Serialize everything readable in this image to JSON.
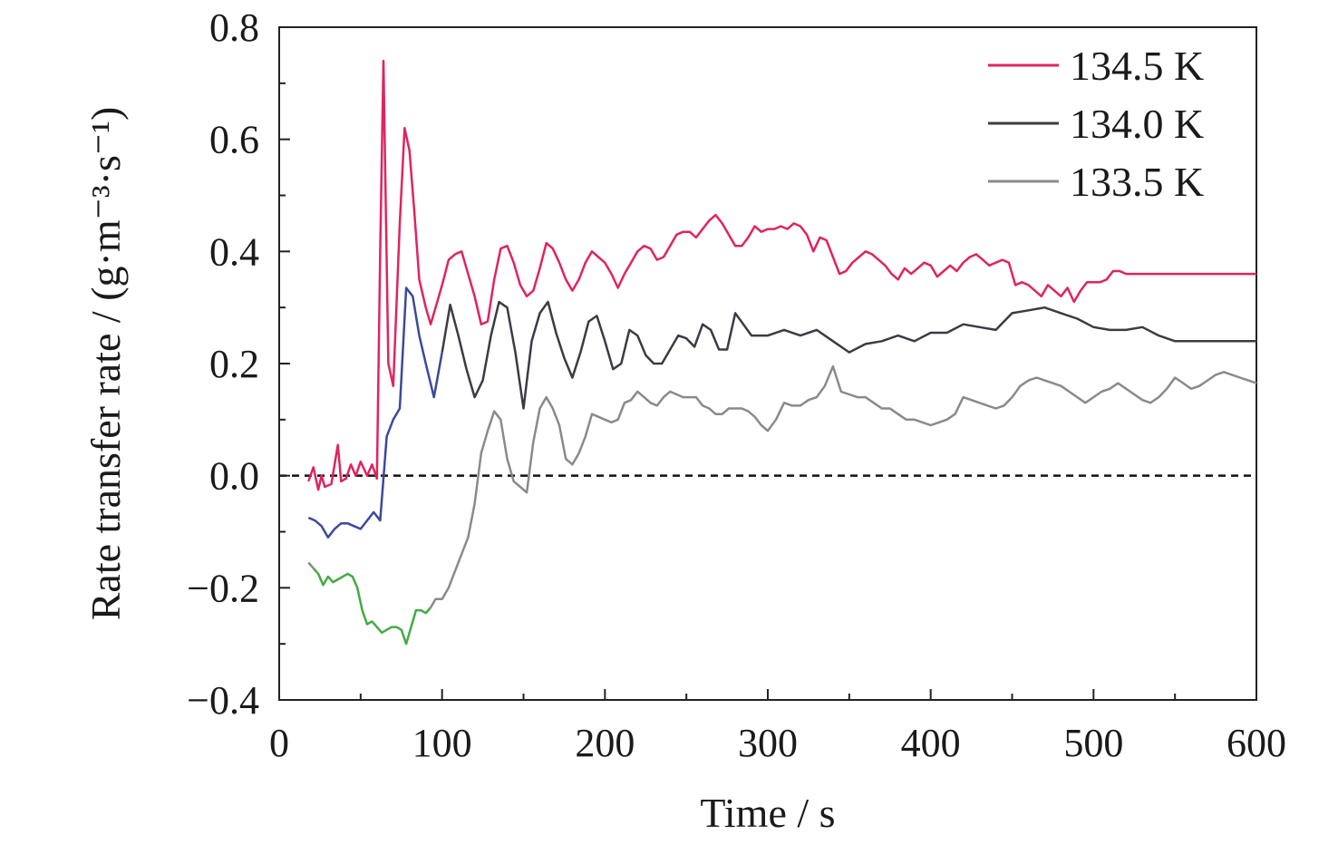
{
  "chart_data": {
    "type": "line",
    "title": "",
    "xlabel": "Time / s",
    "ylabel": "Rate transfer rate / (g·m⁻³·s⁻¹)",
    "xlim": [
      0,
      600
    ],
    "ylim": [
      -0.4,
      0.8
    ],
    "xticks": [
      0,
      100,
      200,
      300,
      400,
      500,
      600
    ],
    "xtick_labels": [
      "0",
      "100",
      "200",
      "300",
      "400",
      "500",
      "600"
    ],
    "yticks": [
      -0.4,
      -0.2,
      0.0,
      0.2,
      0.4,
      0.6,
      0.8
    ],
    "ytick_labels": [
      "−0.4",
      "−0.2",
      "0.0",
      "0.2",
      "0.4",
      "0.6",
      "0.8"
    ],
    "reference_line": {
      "y": 0.0,
      "style": "dashed"
    },
    "grid": false,
    "legend_position": "top-right",
    "series": [
      {
        "name": "134.5 K",
        "color": "#e0245e",
        "x": [
          18,
          21,
          24,
          26,
          28,
          32,
          36,
          38,
          41,
          44,
          47,
          50,
          54,
          57,
          60,
          62,
          64,
          67,
          70,
          74,
          77,
          80,
          83,
          86,
          90,
          93,
          96,
          100,
          104,
          108,
          112,
          116,
          120,
          124,
          128,
          132,
          136,
          140,
          144,
          148,
          152,
          156,
          160,
          164,
          168,
          172,
          176,
          180,
          184,
          188,
          192,
          196,
          200,
          204,
          208,
          212,
          216,
          220,
          224,
          228,
          232,
          236,
          240,
          244,
          248,
          252,
          256,
          260,
          264,
          268,
          272,
          276,
          280,
          284,
          288,
          292,
          296,
          300,
          304,
          308,
          312,
          316,
          320,
          324,
          328,
          332,
          336,
          340,
          344,
          348,
          352,
          356,
          360,
          364,
          368,
          372,
          376,
          380,
          384,
          388,
          392,
          396,
          400,
          404,
          408,
          412,
          416,
          420,
          424,
          428,
          432,
          436,
          440,
          444,
          448,
          452,
          456,
          460,
          464,
          468,
          472,
          476,
          480,
          484,
          488,
          492,
          496,
          500,
          504,
          508,
          512,
          516,
          520,
          524,
          528,
          532,
          536,
          540,
          544,
          548,
          552,
          556,
          560,
          564,
          568,
          572,
          576,
          580,
          584,
          588,
          592,
          596,
          600
        ],
        "y": [
          -0.01,
          0.015,
          -0.025,
          0.0,
          -0.02,
          -0.015,
          0.055,
          -0.01,
          -0.005,
          0.02,
          0.0,
          0.025,
          0.0,
          0.02,
          -0.005,
          0.4,
          0.74,
          0.2,
          0.16,
          0.45,
          0.62,
          0.58,
          0.47,
          0.35,
          0.3,
          0.27,
          0.3,
          0.34,
          0.385,
          0.395,
          0.4,
          0.36,
          0.32,
          0.27,
          0.275,
          0.35,
          0.405,
          0.41,
          0.38,
          0.34,
          0.32,
          0.33,
          0.37,
          0.415,
          0.405,
          0.38,
          0.35,
          0.33,
          0.35,
          0.38,
          0.4,
          0.39,
          0.38,
          0.36,
          0.335,
          0.36,
          0.38,
          0.4,
          0.41,
          0.405,
          0.385,
          0.39,
          0.41,
          0.43,
          0.435,
          0.435,
          0.425,
          0.44,
          0.455,
          0.465,
          0.45,
          0.43,
          0.41,
          0.41,
          0.425,
          0.445,
          0.435,
          0.44,
          0.44,
          0.445,
          0.44,
          0.45,
          0.445,
          0.43,
          0.4,
          0.425,
          0.42,
          0.39,
          0.36,
          0.365,
          0.38,
          0.39,
          0.4,
          0.395,
          0.385,
          0.375,
          0.36,
          0.35,
          0.37,
          0.36,
          0.37,
          0.38,
          0.375,
          0.355,
          0.365,
          0.375,
          0.365,
          0.38,
          0.39,
          0.395,
          0.385,
          0.375,
          0.38,
          0.385,
          0.38,
          0.34,
          0.345,
          0.34,
          0.33,
          0.32,
          0.34,
          0.33,
          0.32,
          0.335,
          0.31,
          0.33,
          0.345,
          0.345,
          0.345,
          0.35,
          0.365,
          0.365,
          0.36,
          0.36,
          0.36,
          0.36,
          0.36,
          0.36,
          0.36,
          0.36,
          0.36,
          0.36,
          0.36,
          0.36,
          0.36,
          0.36,
          0.36,
          0.36,
          0.36,
          0.36,
          0.36,
          0.36,
          0.36
        ]
      },
      {
        "name": "134.0 K",
        "color": "#3b3b45",
        "segment_colors": [
          {
            "x_range": [
              18,
              95
            ],
            "color": "#3b4a9a"
          }
        ],
        "x": [
          18,
          22,
          26,
          30,
          34,
          38,
          42,
          46,
          50,
          54,
          58,
          62,
          66,
          70,
          74,
          78,
          82,
          86,
          90,
          95,
          100,
          105,
          110,
          115,
          120,
          125,
          130,
          135,
          140,
          145,
          150,
          155,
          160,
          165,
          170,
          175,
          180,
          185,
          190,
          195,
          200,
          205,
          210,
          215,
          220,
          225,
          230,
          235,
          240,
          245,
          250,
          255,
          260,
          265,
          270,
          275,
          280,
          285,
          290,
          295,
          300,
          310,
          320,
          330,
          340,
          350,
          360,
          370,
          380,
          390,
          400,
          410,
          420,
          430,
          440,
          450,
          460,
          470,
          480,
          490,
          500,
          510,
          520,
          530,
          540,
          550,
          560,
          570,
          580,
          590,
          600
        ],
        "y": [
          -0.075,
          -0.08,
          -0.09,
          -0.11,
          -0.095,
          -0.085,
          -0.085,
          -0.09,
          -0.095,
          -0.08,
          -0.065,
          -0.08,
          0.07,
          0.1,
          0.12,
          0.335,
          0.32,
          0.25,
          0.2,
          0.14,
          0.22,
          0.305,
          0.25,
          0.19,
          0.14,
          0.17,
          0.25,
          0.31,
          0.3,
          0.22,
          0.12,
          0.24,
          0.29,
          0.31,
          0.255,
          0.21,
          0.175,
          0.22,
          0.275,
          0.285,
          0.24,
          0.19,
          0.2,
          0.26,
          0.25,
          0.215,
          0.2,
          0.2,
          0.225,
          0.25,
          0.245,
          0.23,
          0.27,
          0.26,
          0.225,
          0.225,
          0.29,
          0.27,
          0.25,
          0.25,
          0.25,
          0.26,
          0.25,
          0.26,
          0.24,
          0.22,
          0.235,
          0.24,
          0.25,
          0.24,
          0.255,
          0.255,
          0.27,
          0.265,
          0.26,
          0.29,
          0.295,
          0.3,
          0.29,
          0.28,
          0.265,
          0.26,
          0.26,
          0.265,
          0.25,
          0.24,
          0.24,
          0.24,
          0.24,
          0.24,
          0.24
        ]
      },
      {
        "name": "133.5 K",
        "color": "#8a8a8a",
        "segment_colors": [
          {
            "x_range": [
              20,
              90
            ],
            "color": "#44aa44"
          }
        ],
        "x": [
          18,
          21,
          24,
          27,
          30,
          33,
          36,
          39,
          42,
          45,
          48,
          51,
          54,
          57,
          60,
          63,
          66,
          69,
          72,
          75,
          78,
          81,
          84,
          87,
          90,
          93,
          96,
          100,
          104,
          108,
          112,
          116,
          120,
          124,
          128,
          132,
          136,
          140,
          144,
          148,
          152,
          156,
          160,
          164,
          168,
          172,
          176,
          180,
          184,
          188,
          192,
          196,
          200,
          204,
          208,
          212,
          216,
          220,
          224,
          228,
          232,
          236,
          240,
          244,
          248,
          252,
          256,
          260,
          264,
          268,
          272,
          276,
          280,
          284,
          288,
          292,
          296,
          300,
          305,
          310,
          315,
          320,
          325,
          330,
          335,
          340,
          345,
          350,
          355,
          360,
          365,
          370,
          375,
          380,
          385,
          390,
          395,
          400,
          405,
          410,
          415,
          420,
          425,
          430,
          435,
          440,
          445,
          450,
          455,
          460,
          465,
          470,
          475,
          480,
          485,
          490,
          495,
          500,
          505,
          510,
          515,
          520,
          525,
          530,
          535,
          540,
          545,
          550,
          555,
          560,
          565,
          570,
          575,
          580,
          585,
          590,
          595,
          600
        ],
        "y": [
          -0.155,
          -0.165,
          -0.175,
          -0.195,
          -0.18,
          -0.19,
          -0.185,
          -0.18,
          -0.175,
          -0.18,
          -0.2,
          -0.24,
          -0.265,
          -0.26,
          -0.27,
          -0.28,
          -0.275,
          -0.27,
          -0.27,
          -0.275,
          -0.3,
          -0.27,
          -0.24,
          -0.24,
          -0.245,
          -0.235,
          -0.22,
          -0.22,
          -0.2,
          -0.17,
          -0.14,
          -0.11,
          -0.05,
          0.04,
          0.08,
          0.115,
          0.1,
          0.03,
          -0.01,
          -0.02,
          -0.03,
          0.06,
          0.12,
          0.14,
          0.12,
          0.09,
          0.03,
          0.02,
          0.04,
          0.07,
          0.11,
          0.105,
          0.1,
          0.095,
          0.1,
          0.13,
          0.135,
          0.15,
          0.14,
          0.13,
          0.125,
          0.14,
          0.15,
          0.145,
          0.14,
          0.14,
          0.14,
          0.125,
          0.12,
          0.11,
          0.11,
          0.12,
          0.12,
          0.12,
          0.115,
          0.105,
          0.09,
          0.08,
          0.1,
          0.13,
          0.125,
          0.125,
          0.135,
          0.14,
          0.16,
          0.195,
          0.15,
          0.145,
          0.14,
          0.14,
          0.13,
          0.12,
          0.12,
          0.11,
          0.1,
          0.1,
          0.095,
          0.09,
          0.095,
          0.1,
          0.11,
          0.14,
          0.135,
          0.13,
          0.125,
          0.12,
          0.125,
          0.14,
          0.16,
          0.17,
          0.175,
          0.17,
          0.165,
          0.16,
          0.15,
          0.14,
          0.13,
          0.14,
          0.15,
          0.155,
          0.165,
          0.155,
          0.145,
          0.135,
          0.13,
          0.14,
          0.155,
          0.175,
          0.165,
          0.155,
          0.16,
          0.17,
          0.18,
          0.185,
          0.18,
          0.175,
          0.17,
          0.165
        ]
      }
    ]
  }
}
